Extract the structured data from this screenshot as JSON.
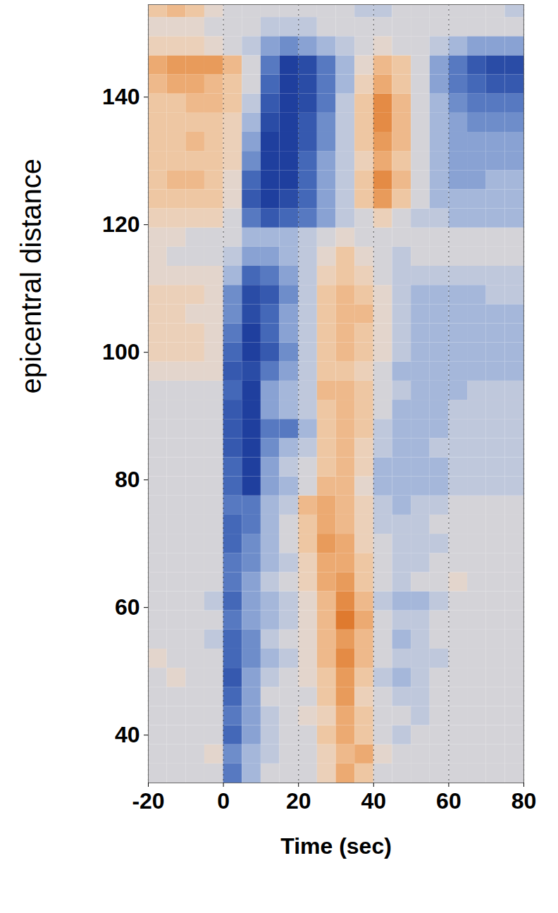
{
  "chart_data": {
    "type": "heatmap",
    "x_label": "Time (sec)",
    "y_label": "epicentral distance",
    "xlim": [
      -20,
      80
    ],
    "ylim": [
      32.5,
      154.5
    ],
    "xticks": [
      -20,
      0,
      20,
      40,
      60,
      80
    ],
    "yticks": [
      40,
      60,
      80,
      100,
      120,
      140
    ],
    "grid": true,
    "x": [
      -17.5,
      -12.5,
      -7.5,
      -2.5,
      2.5,
      7.5,
      12.5,
      17.5,
      22.5,
      27.5,
      32.5,
      37.5,
      42.5,
      47.5,
      52.5,
      57.5,
      62.5,
      67.5,
      72.5,
      77.5
    ],
    "y": [
      34,
      37,
      40,
      43,
      46,
      49,
      52,
      55,
      58,
      61,
      64,
      67,
      70,
      73,
      76,
      79,
      82,
      85,
      88,
      91,
      94,
      97,
      100,
      103,
      106,
      109,
      112,
      115,
      118,
      121,
      124,
      127,
      130,
      133,
      136,
      139,
      142,
      145,
      148,
      151,
      154
    ],
    "values": [
      [
        0,
        0,
        0,
        0,
        -0.5,
        -0.2,
        0,
        0,
        0,
        0.2,
        0.5,
        0.3,
        0,
        0,
        0,
        0,
        0,
        0,
        0,
        0
      ],
      [
        0,
        0,
        0,
        0.1,
        -0.4,
        -0.2,
        -0.1,
        0,
        0,
        0.2,
        0.4,
        0.5,
        0.1,
        0,
        0,
        0,
        0,
        0,
        0,
        0
      ],
      [
        0,
        0,
        0,
        0,
        -0.6,
        -0.3,
        -0.1,
        0,
        0,
        0.3,
        0.5,
        0.3,
        0,
        -0.1,
        0,
        0,
        0,
        0,
        0,
        0
      ],
      [
        0,
        0,
        0,
        0,
        -0.5,
        -0.3,
        -0.1,
        0,
        0.1,
        0.2,
        0.5,
        0.3,
        0,
        0,
        -0.1,
        0,
        0,
        0,
        0,
        0
      ],
      [
        0,
        0,
        0,
        0,
        -0.6,
        -0.3,
        0,
        0,
        0,
        0.3,
        0.6,
        0.2,
        0,
        -0.1,
        -0.1,
        0,
        0,
        0,
        0,
        0
      ],
      [
        0,
        0.1,
        0,
        0,
        -0.7,
        -0.3,
        -0.1,
        0,
        0.1,
        0.3,
        0.6,
        0.3,
        -0.1,
        -0.2,
        -0.1,
        0,
        0,
        0,
        0,
        0
      ],
      [
        0.1,
        0,
        0,
        0,
        -0.6,
        -0.4,
        -0.2,
        -0.1,
        0.1,
        0.4,
        0.7,
        0.4,
        0,
        -0.1,
        -0.1,
        -0.1,
        0,
        0,
        0,
        0
      ],
      [
        0,
        0,
        0,
        -0.1,
        -0.6,
        -0.4,
        -0.1,
        0,
        0.1,
        0.4,
        0.6,
        0.4,
        0,
        -0.2,
        -0.1,
        0,
        0,
        0,
        0,
        0
      ],
      [
        0,
        0,
        0,
        0,
        -0.5,
        -0.3,
        -0.2,
        -0.1,
        0.1,
        0.4,
        0.8,
        0.5,
        0,
        -0.1,
        -0.1,
        0,
        0,
        0,
        0,
        0
      ],
      [
        0,
        0,
        0,
        -0.1,
        -0.6,
        -0.3,
        -0.2,
        -0.1,
        0.1,
        0.4,
        0.7,
        0.4,
        -0.1,
        -0.2,
        -0.2,
        -0.1,
        0,
        0,
        0,
        0
      ],
      [
        0,
        0,
        0,
        0,
        -0.5,
        -0.3,
        -0.1,
        0,
        0.2,
        0.5,
        0.6,
        0.3,
        0,
        -0.1,
        0,
        0,
        0.1,
        0,
        0,
        0
      ],
      [
        0,
        0,
        0,
        0,
        -0.5,
        -0.4,
        -0.2,
        -0.1,
        0.2,
        0.5,
        0.5,
        0.3,
        0,
        -0.1,
        -0.1,
        0,
        0,
        0,
        0,
        0
      ],
      [
        0,
        0,
        0,
        0,
        -0.6,
        -0.4,
        -0.2,
        0,
        0.3,
        0.6,
        0.5,
        0.2,
        0,
        -0.1,
        -0.1,
        -0.1,
        0,
        0,
        0,
        0
      ],
      [
        0,
        0,
        0,
        0,
        -0.6,
        -0.5,
        -0.2,
        0,
        0.3,
        0.5,
        0.4,
        0.2,
        -0.1,
        -0.1,
        -0.1,
        0,
        0,
        0,
        0,
        0
      ],
      [
        0,
        0,
        0,
        0,
        -0.5,
        -0.5,
        -0.2,
        -0.1,
        0.4,
        0.5,
        0.4,
        0.2,
        -0.1,
        -0.2,
        -0.1,
        -0.1,
        0,
        0,
        0,
        0
      ],
      [
        0,
        0,
        0,
        0,
        -0.6,
        -0.9,
        -0.3,
        -0.2,
        0,
        0.4,
        0.4,
        0.1,
        -0.2,
        -0.2,
        -0.2,
        -0.2,
        -0.1,
        -0.1,
        -0.1,
        -0.1
      ],
      [
        0,
        0,
        0,
        0,
        -0.6,
        -0.9,
        -0.3,
        -0.1,
        0,
        0.3,
        0.4,
        0.2,
        -0.2,
        -0.2,
        -0.2,
        -0.2,
        -0.1,
        -0.1,
        -0.1,
        -0.1
      ],
      [
        0,
        0,
        0,
        0,
        -0.7,
        -0.9,
        -0.4,
        -0.2,
        -0.1,
        0.3,
        0.4,
        0.2,
        -0.1,
        -0.2,
        -0.2,
        -0.1,
        -0.1,
        -0.1,
        -0.1,
        -0.1
      ],
      [
        0,
        0,
        0,
        0,
        -0.7,
        -0.9,
        -0.5,
        -0.5,
        -0.2,
        0.3,
        0.4,
        0.3,
        -0.1,
        -0.2,
        -0.2,
        -0.2,
        -0.1,
        -0.1,
        -0.1,
        -0.1
      ],
      [
        0,
        0,
        0,
        0,
        -0.7,
        -0.9,
        -0.3,
        -0.2,
        -0.1,
        0.3,
        0.4,
        0.3,
        0,
        -0.2,
        -0.2,
        -0.2,
        -0.1,
        -0.1,
        -0.1,
        -0.1
      ],
      [
        0,
        0,
        0,
        0,
        -0.6,
        -0.9,
        -0.3,
        -0.2,
        -0.1,
        0.4,
        0.4,
        0.3,
        0,
        -0.1,
        -0.2,
        -0.2,
        -0.2,
        -0.1,
        -0.1,
        -0.1
      ],
      [
        0.1,
        0.1,
        0.1,
        0.1,
        -0.7,
        -0.8,
        -0.5,
        -0.3,
        -0.1,
        0.3,
        0.3,
        0.2,
        0,
        -0.2,
        -0.2,
        -0.2,
        -0.2,
        -0.2,
        -0.2,
        -0.2
      ],
      [
        0.2,
        0.2,
        0.2,
        0.1,
        -0.6,
        -0.9,
        -0.7,
        -0.4,
        -0.1,
        0.3,
        0.4,
        0.3,
        0.1,
        -0.1,
        -0.2,
        -0.2,
        -0.2,
        -0.2,
        -0.2,
        -0.2
      ],
      [
        0.2,
        0.2,
        0.2,
        0.1,
        -0.5,
        -0.9,
        -0.6,
        -0.3,
        -0.1,
        0.3,
        0.4,
        0.3,
        0.1,
        -0.1,
        -0.2,
        -0.2,
        -0.2,
        -0.2,
        -0.2,
        -0.2
      ],
      [
        0.2,
        0.2,
        0.1,
        0.1,
        -0.4,
        -0.8,
        -0.6,
        -0.3,
        -0.1,
        0.3,
        0.4,
        0.4,
        0.1,
        -0.1,
        -0.2,
        -0.2,
        -0.2,
        -0.2,
        -0.2,
        -0.2
      ],
      [
        0.2,
        0.2,
        0.2,
        0.1,
        -0.4,
        -0.8,
        -0.7,
        -0.4,
        -0.1,
        0.3,
        0.4,
        0.3,
        0.1,
        -0.1,
        -0.2,
        -0.2,
        -0.2,
        -0.2,
        -0.1,
        -0.1
      ],
      [
        0.1,
        0.1,
        0.1,
        0.1,
        -0.2,
        -0.6,
        -0.5,
        -0.3,
        -0.1,
        0.2,
        0.3,
        0.2,
        0,
        -0.1,
        -0.1,
        -0.1,
        -0.1,
        -0.1,
        -0.1,
        -0.1
      ],
      [
        0.1,
        0,
        0,
        0,
        -0.1,
        -0.3,
        -0.3,
        -0.2,
        -0.1,
        0.1,
        0.3,
        0.1,
        0,
        -0.1,
        0,
        0,
        0,
        0,
        0,
        0
      ],
      [
        0.1,
        0.1,
        0,
        0,
        0,
        -0.2,
        -0.2,
        -0.2,
        -0.1,
        0,
        0.1,
        0,
        0,
        0,
        0,
        0,
        0,
        0,
        0,
        0
      ],
      [
        0.2,
        0.2,
        0.2,
        0.2,
        0,
        -0.5,
        -0.7,
        -0.6,
        -0.5,
        -0.3,
        -0.1,
        0,
        0.2,
        0,
        -0.1,
        -0.1,
        -0.2,
        -0.2,
        -0.2,
        -0.2
      ],
      [
        0.3,
        0.3,
        0.3,
        0.3,
        0.1,
        -0.7,
        -0.9,
        -0.8,
        -0.6,
        -0.3,
        -0.1,
        0.3,
        0.6,
        0.3,
        0,
        -0.2,
        -0.2,
        -0.2,
        -0.2,
        -0.2
      ],
      [
        0.3,
        0.4,
        0.4,
        0.3,
        0.1,
        -0.6,
        -0.9,
        -0.9,
        -0.6,
        -0.3,
        -0.1,
        0.3,
        0.7,
        0.4,
        0,
        -0.2,
        -0.3,
        -0.3,
        -0.2,
        -0.2
      ],
      [
        0.3,
        0.3,
        0.3,
        0.3,
        0.2,
        -0.4,
        -0.9,
        -0.9,
        -0.6,
        -0.3,
        -0.1,
        0.2,
        0.5,
        0.3,
        0,
        -0.2,
        -0.3,
        -0.3,
        -0.3,
        -0.3
      ],
      [
        0.3,
        0.3,
        0.4,
        0.3,
        0.2,
        -0.3,
        -0.9,
        -0.9,
        -0.7,
        -0.4,
        -0.1,
        0.3,
        0.6,
        0.4,
        0,
        -0.2,
        -0.3,
        -0.3,
        -0.3,
        -0.3
      ],
      [
        0.3,
        0.3,
        0.3,
        0.3,
        0.2,
        -0.2,
        -0.8,
        -0.9,
        -0.7,
        -0.4,
        -0.1,
        0.3,
        0.7,
        0.4,
        0,
        -0.2,
        -0.3,
        -0.4,
        -0.4,
        -0.4
      ],
      [
        0.3,
        0.3,
        0.4,
        0.4,
        0.3,
        -0.1,
        -0.7,
        -0.9,
        -0.8,
        -0.5,
        -0.1,
        0.3,
        0.7,
        0.4,
        0,
        -0.2,
        -0.4,
        -0.5,
        -0.5,
        -0.5
      ],
      [
        0.4,
        0.5,
        0.5,
        0.4,
        0.3,
        0,
        -0.6,
        -0.9,
        -0.8,
        -0.5,
        -0.2,
        0.2,
        0.5,
        0.3,
        0,
        -0.3,
        -0.5,
        -0.6,
        -0.7,
        -0.7
      ],
      [
        0.5,
        0.6,
        0.6,
        0.6,
        0.4,
        0,
        -0.5,
        -0.9,
        -0.8,
        -0.5,
        -0.2,
        0.1,
        0.4,
        0.3,
        0,
        -0.3,
        -0.5,
        -0.7,
        -0.8,
        -0.8
      ],
      [
        0.2,
        0.2,
        0.2,
        0.1,
        0,
        -0.1,
        -0.3,
        -0.4,
        -0.3,
        -0.2,
        -0.1,
        0,
        0.1,
        0,
        0,
        -0.1,
        -0.2,
        -0.3,
        -0.3,
        -0.3
      ],
      [
        0.1,
        0.1,
        0.1,
        0,
        0,
        0,
        -0.1,
        -0.1,
        -0.1,
        0,
        0,
        0,
        0,
        0,
        0,
        0,
        0,
        0,
        0,
        0
      ],
      [
        0.3,
        0.4,
        0.3,
        0.1,
        0,
        0,
        0,
        0,
        0,
        0,
        0,
        -0.1,
        -0.1,
        0,
        0,
        0,
        0,
        0,
        0,
        -0.1
      ]
    ]
  }
}
